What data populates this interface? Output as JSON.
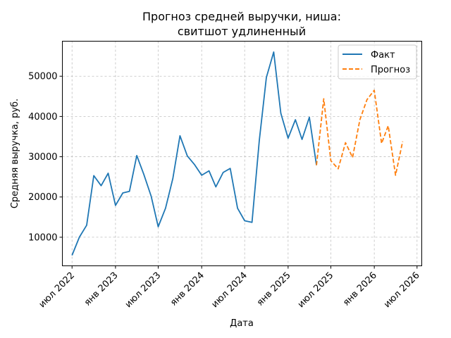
{
  "chart_data": {
    "type": "line",
    "title": "Прогноз средней выручки, ниша:\nсвитшот удлиненный",
    "xlabel": "Дата",
    "ylabel": "Средняя выручка, руб.",
    "xlim": [
      "2022-05-21",
      "2026-07-21"
    ],
    "ylim": [
      2900,
      58700
    ],
    "grid": true,
    "grid_style": "dashed",
    "legend_position": "top-right",
    "x_ticks": [
      {
        "date": "2022-07-01",
        "label": "июл 2022"
      },
      {
        "date": "2023-01-01",
        "label": "янв 2023"
      },
      {
        "date": "2023-07-01",
        "label": "июл 2023"
      },
      {
        "date": "2024-01-01",
        "label": "янв 2024"
      },
      {
        "date": "2024-07-01",
        "label": "июл 2024"
      },
      {
        "date": "2025-01-01",
        "label": "янв 2025"
      },
      {
        "date": "2025-07-01",
        "label": "июл 2025"
      },
      {
        "date": "2026-01-01",
        "label": "янв 2026"
      },
      {
        "date": "2026-07-01",
        "label": "июл 2026"
      }
    ],
    "y_ticks": [
      10000,
      20000,
      30000,
      40000,
      50000
    ],
    "series": [
      {
        "name": "Факт",
        "color": "#1f77b4",
        "line_style": "solid",
        "x": [
          "2022-07-01",
          "2022-08-01",
          "2022-09-01",
          "2022-10-01",
          "2022-11-01",
          "2022-12-01",
          "2023-01-01",
          "2023-02-01",
          "2023-03-01",
          "2023-04-01",
          "2023-05-01",
          "2023-06-01",
          "2023-07-01",
          "2023-08-01",
          "2023-09-01",
          "2023-10-01",
          "2023-11-01",
          "2023-12-01",
          "2024-01-01",
          "2024-02-01",
          "2024-03-01",
          "2024-04-01",
          "2024-05-01",
          "2024-06-01",
          "2024-07-01",
          "2024-08-01",
          "2024-09-01",
          "2024-10-01",
          "2024-11-01",
          "2024-12-01",
          "2025-01-01",
          "2025-02-01",
          "2025-03-01",
          "2025-04-01",
          "2025-05-01"
        ],
        "values": [
          5500,
          10000,
          13000,
          25300,
          22800,
          25900,
          17900,
          21000,
          21400,
          30300,
          25600,
          20200,
          12600,
          17200,
          24600,
          35200,
          30200,
          28100,
          25400,
          26500,
          22500,
          26100,
          27100,
          17200,
          14100,
          13700,
          34100,
          49700,
          56000,
          40800,
          34600,
          39200,
          34300,
          39800,
          27900
        ]
      },
      {
        "name": "Прогноз",
        "color": "#ff7f0e",
        "line_style": "dashed",
        "x": [
          "2025-05-01",
          "2025-06-01",
          "2025-07-01",
          "2025-08-01",
          "2025-09-01",
          "2025-10-01",
          "2025-11-01",
          "2025-12-01",
          "2026-01-01",
          "2026-02-01",
          "2026-03-01",
          "2026-04-01",
          "2026-05-01"
        ],
        "values": [
          27900,
          44400,
          29000,
          27000,
          33500,
          29800,
          39200,
          44200,
          46500,
          33300,
          37700,
          25400,
          33800
        ]
      }
    ]
  }
}
